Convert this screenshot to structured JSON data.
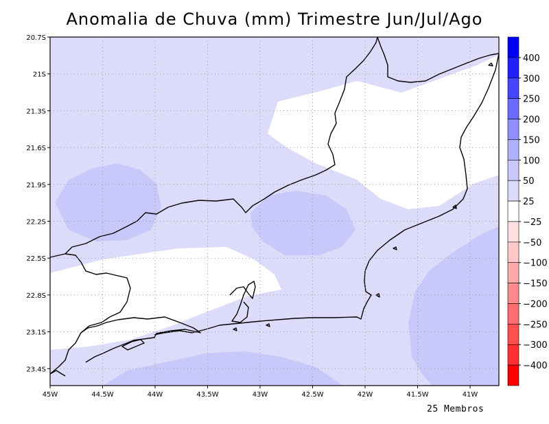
{
  "map": {
    "title": "Anomalia de Chuva (mm) Trimestre Jun/Jul/Ago",
    "footer": "25 Membros",
    "lat_labels": [
      "20.7S",
      "21S",
      "21.3S",
      "21.6S",
      "21.9S",
      "22.2S",
      "22.5S",
      "22.8S",
      "23.1S",
      "23.4S"
    ],
    "lon_labels": [
      "45W",
      "44.5W",
      "44W",
      "43.5W",
      "43W",
      "42.5W",
      "42W",
      "41.5W",
      "41W"
    ],
    "colorbar": {
      "labels": [
        "400",
        "300",
        "250",
        "200",
        "150",
        "100",
        "50",
        "25",
        "−25",
        "−50",
        "−100",
        "−150",
        "−200",
        "−250",
        "−300",
        "−400"
      ],
      "colors": [
        "#0000ff",
        "#2020ff",
        "#4646ff",
        "#6b6bff",
        "#8f8fff",
        "#b0b0fd",
        "#c8c8fb",
        "#dcdcfa",
        "#ffffff",
        "#ffe0e0",
        "#ffc8c8",
        "#ffaaaa",
        "#ff8c8c",
        "#ff6e6e",
        "#ff5050",
        "#ff3030",
        "#ff0000"
      ]
    },
    "shading": {
      "background_class": "25 a 50",
      "background_color": "#dcdcfa",
      "neutral_color": "#ffffff",
      "positive_50_100_color": "#c8c8fb"
    }
  }
}
